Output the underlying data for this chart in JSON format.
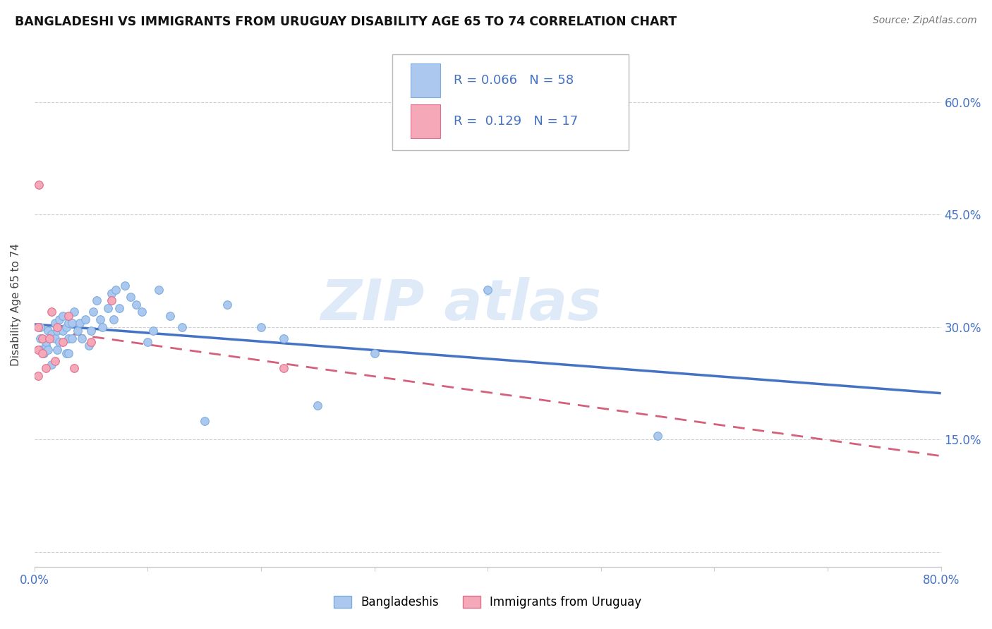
{
  "title": "BANGLADESHI VS IMMIGRANTS FROM URUGUAY DISABILITY AGE 65 TO 74 CORRELATION CHART",
  "source_text": "Source: ZipAtlas.com",
  "ylabel": "Disability Age 65 to 74",
  "watermark_line1": "ZIP",
  "watermark_line2": "atlas",
  "bangladeshi_R": 0.066,
  "bangladeshi_N": 58,
  "uruguay_R": 0.129,
  "uruguay_N": 17,
  "xlim": [
    0.0,
    0.8
  ],
  "ylim": [
    -0.02,
    0.68
  ],
  "ytick_positions": [
    0.0,
    0.15,
    0.3,
    0.45,
    0.6
  ],
  "ytick_labels": [
    "",
    "15.0%",
    "30.0%",
    "45.0%",
    "60.0%"
  ],
  "bangladeshi_color": "#adc8ef",
  "bangladeshi_edge": "#7aaee0",
  "uruguay_color": "#f4a8b8",
  "uruguay_edge": "#e07090",
  "trend_bangladeshi_color": "#4472c4",
  "trend_uruguay_color": "#d4607a",
  "bangladeshi_x": [
    0.005,
    0.005,
    0.005,
    0.008,
    0.01,
    0.01,
    0.012,
    0.012,
    0.015,
    0.015,
    0.018,
    0.018,
    0.02,
    0.02,
    0.022,
    0.022,
    0.025,
    0.025,
    0.028,
    0.028,
    0.03,
    0.03,
    0.03,
    0.033,
    0.033,
    0.035,
    0.038,
    0.04,
    0.042,
    0.045,
    0.048,
    0.05,
    0.052,
    0.055,
    0.058,
    0.06,
    0.065,
    0.068,
    0.07,
    0.072,
    0.075,
    0.08,
    0.085,
    0.09,
    0.095,
    0.1,
    0.105,
    0.11,
    0.12,
    0.13,
    0.15,
    0.17,
    0.2,
    0.22,
    0.25,
    0.3,
    0.4,
    0.55
  ],
  "bangladeshi_y": [
    0.27,
    0.3,
    0.285,
    0.265,
    0.275,
    0.28,
    0.27,
    0.295,
    0.25,
    0.29,
    0.305,
    0.285,
    0.27,
    0.295,
    0.31,
    0.28,
    0.295,
    0.315,
    0.265,
    0.3,
    0.265,
    0.285,
    0.305,
    0.285,
    0.305,
    0.32,
    0.295,
    0.305,
    0.285,
    0.31,
    0.275,
    0.295,
    0.32,
    0.335,
    0.31,
    0.3,
    0.325,
    0.345,
    0.31,
    0.35,
    0.325,
    0.355,
    0.34,
    0.33,
    0.32,
    0.28,
    0.295,
    0.35,
    0.315,
    0.3,
    0.175,
    0.33,
    0.3,
    0.285,
    0.195,
    0.265,
    0.35,
    0.155
  ],
  "uruguay_x": [
    0.003,
    0.003,
    0.003,
    0.004,
    0.007,
    0.007,
    0.01,
    0.013,
    0.015,
    0.018,
    0.02,
    0.025,
    0.03,
    0.035,
    0.05,
    0.068,
    0.22
  ],
  "uruguay_y": [
    0.27,
    0.3,
    0.235,
    0.49,
    0.285,
    0.265,
    0.245,
    0.285,
    0.32,
    0.255,
    0.3,
    0.28,
    0.315,
    0.245,
    0.28,
    0.335,
    0.245
  ],
  "legend_bangladeshi_label": "Bangladeshis",
  "legend_uruguay_label": "Immigrants from Uruguay",
  "grid_color": "#d0d0d0",
  "background_color": "#ffffff"
}
